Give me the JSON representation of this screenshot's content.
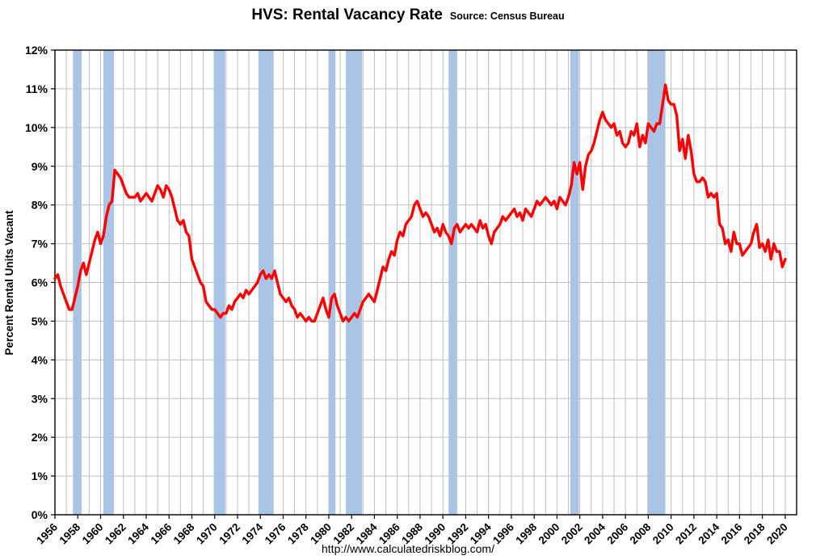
{
  "title": "HVS: Rental Vacancy Rate",
  "subtitle": "Source: Census Bureau",
  "footer": "http://www.calculatedriskblog.com/",
  "chart_data": {
    "type": "line",
    "title": "HVS: Rental Vacancy Rate",
    "subtitle": "Source: Census Bureau",
    "xlabel": "",
    "ylabel": "Percent Rental Units Vacant",
    "ylim": [
      0,
      12
    ],
    "xlim": [
      1956,
      2021
    ],
    "grid": true,
    "legend": "none",
    "y_tick_step": 1,
    "y_tick_suffix": "%",
    "x_grid_step": 1,
    "x_ticks": [
      1956,
      1958,
      1960,
      1962,
      1964,
      1966,
      1968,
      1970,
      1972,
      1974,
      1976,
      1978,
      1980,
      1982,
      1984,
      1986,
      1988,
      1990,
      1992,
      1994,
      1996,
      1998,
      2000,
      2002,
      2004,
      2006,
      2008,
      2010,
      2012,
      2014,
      2016,
      2018,
      2020
    ],
    "line_color": "#ff0000",
    "recession_band_color": "#a9c4e4",
    "recessions": [
      [
        1957.58,
        1958.33
      ],
      [
        1960.25,
        1961.17
      ],
      [
        1969.92,
        1970.92
      ],
      [
        1973.83,
        1975.17
      ],
      [
        1980.0,
        1980.58
      ],
      [
        1981.5,
        1982.92
      ],
      [
        1990.5,
        1991.25
      ],
      [
        2001.17,
        2001.92
      ],
      [
        2007.92,
        2009.5
      ]
    ],
    "x_start": 1956,
    "x_step": 0.25,
    "series_name": "Rental Vacancy Rate (quarterly)",
    "values": [
      6.1,
      6.2,
      5.9,
      5.7,
      5.5,
      5.3,
      5.3,
      5.6,
      5.9,
      6.3,
      6.5,
      6.2,
      6.5,
      6.8,
      7.1,
      7.3,
      7.0,
      7.2,
      7.7,
      8.0,
      8.1,
      8.9,
      8.8,
      8.7,
      8.5,
      8.3,
      8.2,
      8.2,
      8.2,
      8.3,
      8.1,
      8.2,
      8.3,
      8.2,
      8.1,
      8.3,
      8.5,
      8.4,
      8.2,
      8.5,
      8.4,
      8.2,
      7.9,
      7.6,
      7.5,
      7.6,
      7.3,
      7.2,
      6.6,
      6.4,
      6.2,
      6.0,
      5.9,
      5.5,
      5.4,
      5.3,
      5.3,
      5.2,
      5.1,
      5.2,
      5.2,
      5.4,
      5.3,
      5.5,
      5.6,
      5.7,
      5.6,
      5.8,
      5.7,
      5.8,
      5.9,
      6.0,
      6.2,
      6.3,
      6.1,
      6.2,
      6.1,
      6.3,
      6.0,
      5.7,
      5.6,
      5.5,
      5.6,
      5.4,
      5.3,
      5.1,
      5.2,
      5.1,
      5.0,
      5.1,
      5.0,
      5.0,
      5.2,
      5.4,
      5.6,
      5.3,
      5.1,
      5.6,
      5.7,
      5.4,
      5.2,
      5.0,
      5.1,
      5.0,
      5.1,
      5.2,
      5.1,
      5.3,
      5.5,
      5.6,
      5.7,
      5.6,
      5.5,
      5.8,
      6.1,
      6.4,
      6.3,
      6.6,
      6.8,
      6.7,
      7.1,
      7.3,
      7.2,
      7.5,
      7.6,
      7.7,
      8.0,
      8.1,
      7.9,
      7.7,
      7.8,
      7.7,
      7.5,
      7.3,
      7.4,
      7.2,
      7.5,
      7.3,
      7.2,
      7.0,
      7.4,
      7.5,
      7.3,
      7.4,
      7.5,
      7.4,
      7.5,
      7.4,
      7.3,
      7.6,
      7.4,
      7.5,
      7.2,
      7.0,
      7.3,
      7.4,
      7.5,
      7.7,
      7.6,
      7.7,
      7.8,
      7.9,
      7.7,
      7.8,
      7.6,
      7.9,
      7.8,
      7.7,
      7.9,
      8.1,
      8.0,
      8.1,
      8.2,
      8.1,
      8.0,
      8.1,
      7.9,
      8.2,
      8.1,
      8.0,
      8.2,
      8.5,
      9.1,
      8.8,
      9.1,
      8.4,
      9.0,
      9.3,
      9.4,
      9.6,
      9.9,
      10.2,
      10.4,
      10.2,
      10.1,
      10.0,
      10.1,
      9.8,
      9.9,
      9.6,
      9.5,
      9.6,
      9.9,
      9.8,
      10.1,
      9.5,
      9.8,
      9.6,
      10.1,
      10.0,
      9.9,
      10.1,
      10.1,
      10.6,
      11.1,
      10.7,
      10.6,
      10.6,
      10.3,
      9.4,
      9.7,
      9.2,
      9.8,
      9.4,
      8.8,
      8.6,
      8.6,
      8.7,
      8.6,
      8.2,
      8.3,
      8.2,
      8.3,
      7.5,
      7.4,
      7.0,
      7.1,
      6.8,
      7.3,
      7.0,
      7.0,
      6.7,
      6.8,
      6.9,
      7.0,
      7.3,
      7.5,
      6.9,
      7.0,
      6.8,
      7.1,
      6.6,
      7.0,
      6.8,
      6.8,
      6.4,
      6.6
    ]
  }
}
